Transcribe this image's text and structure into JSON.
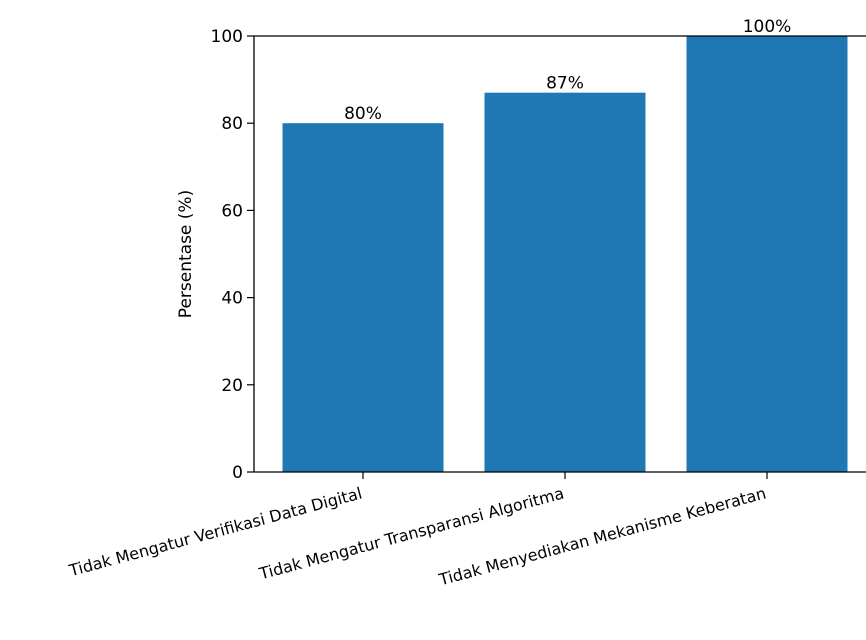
{
  "chart_data": {
    "type": "bar",
    "categories": [
      "Tidak Mengatur Verifikasi Data Digital",
      "Tidak Mengatur Transparansi Algoritma",
      "Tidak Menyediakan Mekanisme Keberatan"
    ],
    "values": [
      80,
      87,
      100
    ],
    "data_labels": [
      "80%",
      "87%",
      "100%"
    ],
    "title": "",
    "xlabel": "",
    "ylabel": "Persentase (%)",
    "ylim": [
      0,
      100
    ],
    "yticks": [
      0,
      20,
      40,
      60,
      80,
      100
    ],
    "bar_color": "#1f77b4",
    "grid": false,
    "legend": "none"
  }
}
